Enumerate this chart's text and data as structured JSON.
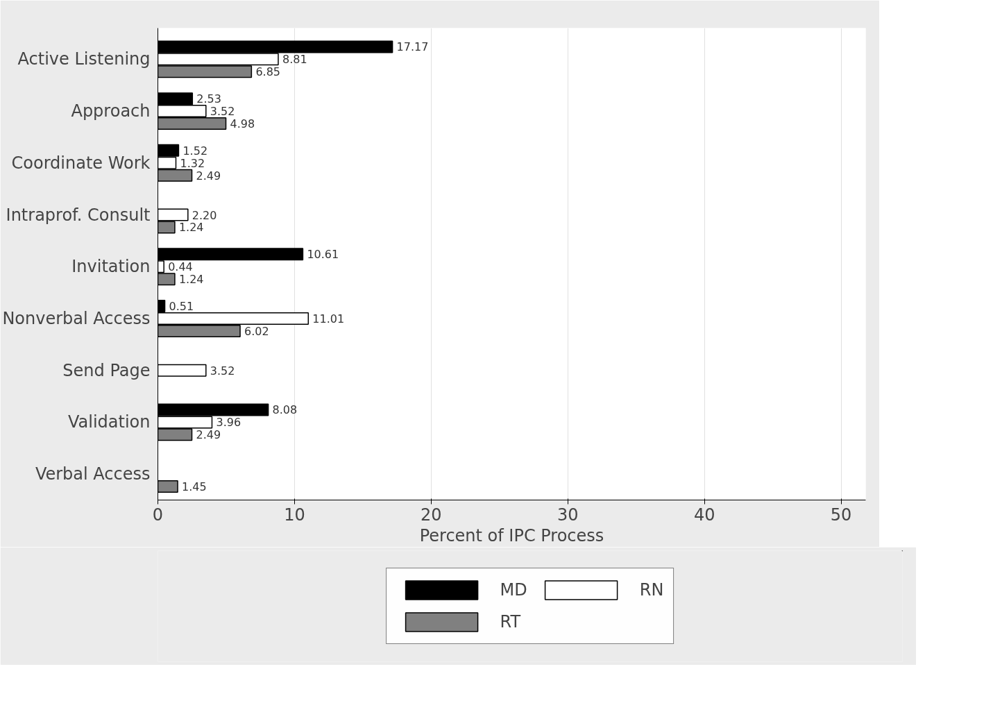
{
  "chart_data": {
    "type": "bar",
    "orientation": "horizontal",
    "xlabel": "Percent of IPC Process",
    "categories": [
      "Active Listening",
      "Approach",
      "Coordinate Work",
      "Intraprof. Consult",
      "Invitation",
      "Nonverbal Access",
      "Send Page",
      "Validation",
      "Verbal Access"
    ],
    "series": [
      {
        "name": "MD",
        "color": "#000000",
        "values": [
          17.17,
          2.53,
          1.52,
          null,
          10.61,
          0.51,
          null,
          8.08,
          null
        ],
        "value_labels": [
          "17.17",
          "2.53",
          "1.52",
          null,
          "10.61",
          "0.51",
          null,
          "8.08",
          null
        ]
      },
      {
        "name": "RN",
        "color": "#ffffff",
        "values": [
          8.81,
          3.52,
          1.32,
          2.2,
          0.44,
          11.01,
          3.52,
          3.96,
          null
        ],
        "value_labels": [
          "8.81",
          "3.52",
          "1.32",
          "2.20",
          "0.44",
          "11.01",
          "3.52",
          "3.96",
          null
        ]
      },
      {
        "name": "RT",
        "color": "#808080",
        "values": [
          6.85,
          4.98,
          2.49,
          1.24,
          1.24,
          6.02,
          null,
          2.49,
          1.45
        ],
        "value_labels": [
          "6.85",
          "4.98",
          "2.49",
          "1.24",
          "1.24",
          "6.02",
          null,
          "2.49",
          "1.45"
        ]
      }
    ],
    "xlim": [
      0,
      51.8
    ],
    "xticks": [
      0,
      10,
      20,
      30,
      40,
      50
    ],
    "grid": "x",
    "legend": "bottom"
  }
}
